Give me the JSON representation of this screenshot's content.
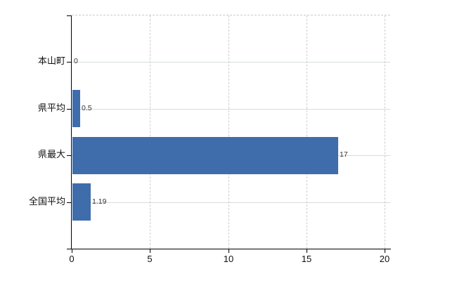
{
  "chart_data": {
    "type": "bar",
    "orientation": "horizontal",
    "title": "",
    "xlabel": "",
    "ylabel": "",
    "categories": [
      "本山町",
      "県平均",
      "県最大",
      "全国平均"
    ],
    "values": [
      0,
      0.5,
      17,
      1.19
    ],
    "value_labels": [
      "0",
      "0.5",
      "17",
      "1.19"
    ],
    "x_ticks": [
      0,
      5,
      10,
      15,
      20
    ],
    "x_tick_labels": [
      "0",
      "5",
      "10",
      "15",
      "20"
    ],
    "xlim": [
      0,
      20
    ],
    "grid": "on",
    "legend": "none"
  },
  "colors": {
    "bar": "#3f6dab",
    "axis": "#000000",
    "grid_horizontal": "#d8ded8",
    "grid_vertical": "#d2cbd2",
    "plot_top_border": "#cfc9cf",
    "value_label": "#333333",
    "axis_label": "#111111"
  }
}
